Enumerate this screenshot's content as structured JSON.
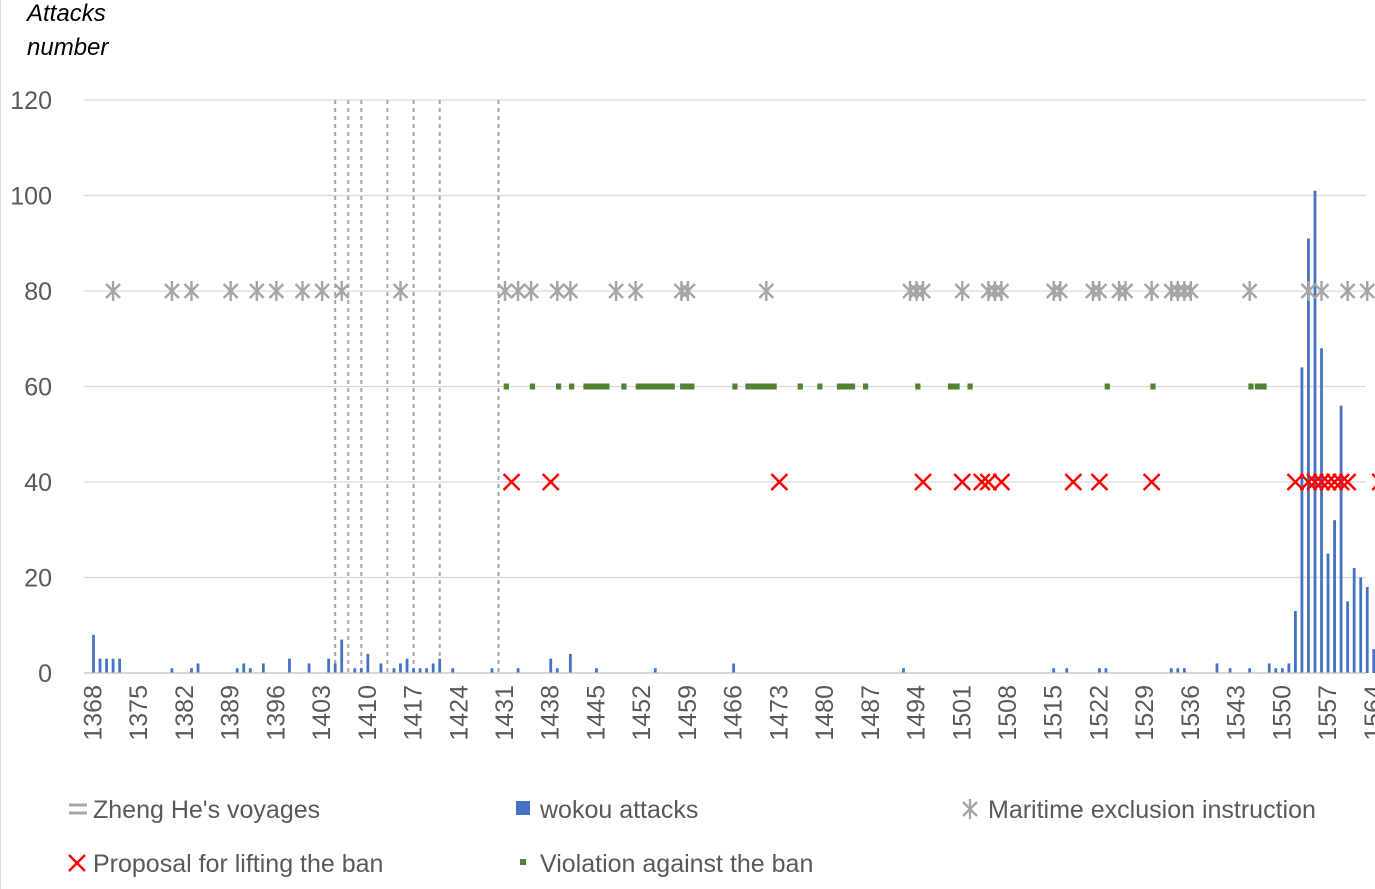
{
  "chart_data": {
    "type": "bar",
    "ylabel_lines": [
      "Attacks",
      "number"
    ],
    "ylim": [
      0,
      120
    ],
    "yticks": [
      0,
      20,
      40,
      60,
      80,
      100,
      120
    ],
    "xlim": [
      1368,
      1564
    ],
    "xticks": [
      1368,
      1375,
      1382,
      1389,
      1396,
      1403,
      1410,
      1417,
      1424,
      1431,
      1438,
      1445,
      1452,
      1459,
      1466,
      1473,
      1480,
      1487,
      1494,
      1501,
      1508,
      1515,
      1522,
      1529,
      1536,
      1543,
      1550,
      1557,
      1564
    ],
    "grid": true,
    "legend_position": "bottom",
    "colors": {
      "voyages": "#a6a6a6",
      "wokou": "#4472c4",
      "exclusion": "#a5a5a5",
      "proposal": "#ff0000",
      "violation": "#548235",
      "grid": "#d9d9d9",
      "axis": "#bfbfbf"
    },
    "series": [
      {
        "name": "Zheng He's voyages",
        "type": "vline",
        "x": [
          1405,
          1407,
          1409,
          1413,
          1417,
          1421,
          1430
        ]
      },
      {
        "name": "wokou attacks",
        "type": "bar",
        "x": [
          1368,
          1369,
          1370,
          1371,
          1372,
          1380,
          1383,
          1384,
          1390,
          1391,
          1392,
          1394,
          1398,
          1401,
          1404,
          1405,
          1406,
          1408,
          1409,
          1410,
          1412,
          1414,
          1415,
          1416,
          1417,
          1418,
          1419,
          1420,
          1421,
          1423,
          1429,
          1433,
          1438,
          1439,
          1441,
          1445,
          1454,
          1466,
          1492,
          1515,
          1517,
          1522,
          1523,
          1533,
          1534,
          1535,
          1540,
          1542,
          1545,
          1548,
          1549,
          1550,
          1551,
          1552,
          1553,
          1554,
          1555,
          1556,
          1557,
          1558,
          1559,
          1560,
          1561,
          1562,
          1563,
          1564
        ],
        "values": [
          8,
          3,
          3,
          3,
          3,
          1,
          1,
          2,
          1,
          2,
          1,
          2,
          3,
          2,
          3,
          2,
          7,
          1,
          1,
          4,
          2,
          1,
          2,
          3,
          1,
          1,
          1,
          2,
          3,
          1,
          1,
          1,
          3,
          1,
          4,
          1,
          1,
          2,
          1,
          1,
          1,
          1,
          1,
          1,
          1,
          1,
          2,
          1,
          1,
          2,
          1,
          1,
          2,
          13,
          64,
          91,
          101,
          68,
          25,
          32,
          56,
          15,
          22,
          20,
          18,
          5
        ]
      },
      {
        "name": "Maritime exclusion instruction",
        "type": "marker",
        "y": 80,
        "x": [
          1371,
          1380,
          1383,
          1389,
          1393,
          1396,
          1400,
          1403,
          1406,
          1415,
          1431,
          1433,
          1435,
          1439,
          1441,
          1448,
          1451,
          1458,
          1459,
          1471,
          1493,
          1494,
          1495,
          1501,
          1505,
          1506,
          1507,
          1515,
          1516,
          1521,
          1522,
          1525,
          1526,
          1530,
          1533,
          1534,
          1535,
          1536,
          1545,
          1554,
          1556,
          1560,
          1563
        ]
      },
      {
        "name": "Proposal for lifting the ban",
        "type": "marker",
        "y": 40,
        "x": [
          1432,
          1438,
          1473,
          1495,
          1501,
          1504,
          1505,
          1507,
          1518,
          1522,
          1530,
          1552,
          1554,
          1555,
          1556,
          1557,
          1558,
          1559,
          1560,
          1565
        ]
      },
      {
        "name": "Violation against the ban",
        "type": "segments",
        "y": 60,
        "ranges": [
          [
            1430.8,
            1431.6
          ],
          [
            1434.8,
            1435.6
          ],
          [
            1438.8,
            1439.6
          ],
          [
            1440.8,
            1441.6
          ],
          [
            1443,
            1447
          ],
          [
            1448.8,
            1449.6
          ],
          [
            1451,
            1457
          ],
          [
            1457.8,
            1460
          ],
          [
            1465.8,
            1466.6
          ],
          [
            1467.8,
            1472.6
          ],
          [
            1475.8,
            1476.6
          ],
          [
            1478.8,
            1479.6
          ],
          [
            1481.8,
            1484.6
          ],
          [
            1485.8,
            1486.6
          ],
          [
            1493.8,
            1494.6
          ],
          [
            1498.8,
            1500.6
          ],
          [
            1501.8,
            1502.6
          ],
          [
            1522.8,
            1523.6
          ],
          [
            1529.8,
            1530.6
          ],
          [
            1544.8,
            1545.6
          ],
          [
            1545.8,
            1547.6
          ]
        ]
      }
    ]
  }
}
